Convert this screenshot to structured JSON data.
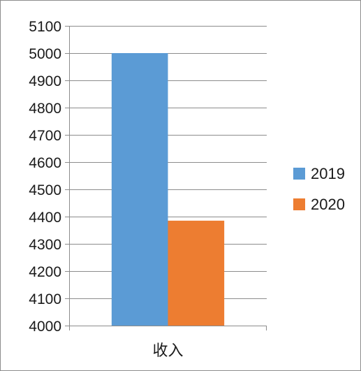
{
  "chart_data": {
    "type": "bar",
    "title": "",
    "xlabel": "",
    "ylabel": "",
    "categories": [
      "收入"
    ],
    "series": [
      {
        "name": "2019",
        "values": [
          5000
        ],
        "color": "#5b9bd5"
      },
      {
        "name": "2020",
        "values": [
          4385
        ],
        "color": "#ed7d31"
      }
    ],
    "ylim": [
      4000,
      5100
    ],
    "yticks": [
      4000,
      4100,
      4200,
      4300,
      4400,
      4500,
      4600,
      4700,
      4800,
      4900,
      5000,
      5100
    ],
    "grid": true,
    "legend_position": "right"
  }
}
